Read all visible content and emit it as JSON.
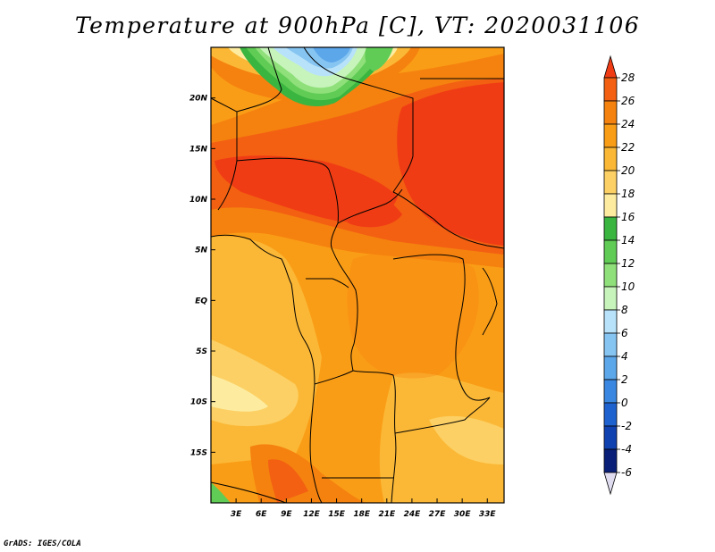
{
  "title": "Temperature at 900hPa [C], VT: 2020031106",
  "credit": "GrADS: IGES/COLA",
  "map": {
    "lon_range": [
      0,
      35
    ],
    "lat_range": [
      -20,
      25
    ],
    "x_ticks": [
      {
        "lon": 3,
        "label": "3E"
      },
      {
        "lon": 6,
        "label": "6E"
      },
      {
        "lon": 9,
        "label": "9E"
      },
      {
        "lon": 12,
        "label": "12E"
      },
      {
        "lon": 15,
        "label": "15E"
      },
      {
        "lon": 18,
        "label": "18E"
      },
      {
        "lon": 21,
        "label": "21E"
      },
      {
        "lon": 24,
        "label": "24E"
      },
      {
        "lon": 27,
        "label": "27E"
      },
      {
        "lon": 30,
        "label": "30E"
      },
      {
        "lon": 33,
        "label": "33E"
      }
    ],
    "y_ticks": [
      {
        "lat": 20,
        "label": "20N"
      },
      {
        "lat": 15,
        "label": "15N"
      },
      {
        "lat": 10,
        "label": "10N"
      },
      {
        "lat": 5,
        "label": "5N"
      },
      {
        "lat": 0,
        "label": "EQ"
      },
      {
        "lat": -5,
        "label": "5S"
      },
      {
        "lat": -10,
        "label": "10S"
      },
      {
        "lat": -15,
        "label": "15S"
      }
    ]
  },
  "colorbar": {
    "levels": [
      28,
      26,
      24,
      22,
      20,
      18,
      16,
      14,
      12,
      10,
      8,
      6,
      4,
      2,
      0,
      -2,
      -4,
      -6
    ],
    "labels": [
      "28",
      "26",
      "24",
      "22",
      "20",
      "18",
      "16",
      "14",
      "12",
      "10",
      "8",
      "6",
      "4",
      "2",
      "0",
      "-2",
      "-4",
      "-6"
    ],
    "colors": [
      "#f03c14",
      "#f36012",
      "#f5820f",
      "#fa9d16",
      "#fbb836",
      "#fcd064",
      "#fdeca0",
      "#3ab540",
      "#60cc55",
      "#8fe07a",
      "#c7f4bb",
      "#b8e2fa",
      "#86c5f2",
      "#5ca6ea",
      "#3a87e1",
      "#1e62cf",
      "#1041b0",
      "#0a2078",
      "#e0dcf0"
    ]
  }
}
